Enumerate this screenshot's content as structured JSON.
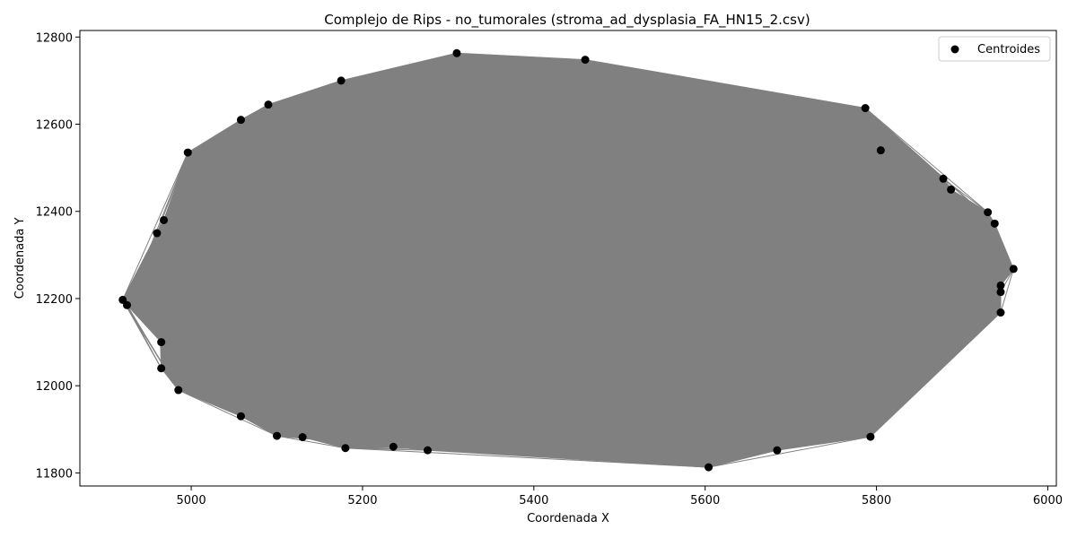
{
  "chart_data": {
    "type": "scatter",
    "title": "Complejo de Rips - no_tumorales (stroma_ad_dysplasia_FA_HN15_2.csv)",
    "xlabel": "Coordenada X",
    "ylabel": "Coordenada Y",
    "xlim": [
      4870,
      6010
    ],
    "ylim": [
      11770,
      12815
    ],
    "xticks": [
      5000,
      5200,
      5400,
      5600,
      5800,
      6000
    ],
    "yticks": [
      11800,
      12000,
      12200,
      12400,
      12600,
      12800
    ],
    "grid": false,
    "legend": {
      "position": "top-right",
      "entries": [
        "Centroides"
      ]
    },
    "colors": {
      "points": "#000000",
      "edges": "#808080"
    },
    "series": [
      {
        "name": "Centroides",
        "points": [
          [
            4920,
            12197
          ],
          [
            4925,
            12185
          ],
          [
            4960,
            12350
          ],
          [
            4968,
            12380
          ],
          [
            4965,
            12100
          ],
          [
            4965,
            12040
          ],
          [
            4985,
            11990
          ],
          [
            4996,
            12535
          ],
          [
            5058,
            12610
          ],
          [
            5090,
            12645
          ],
          [
            5058,
            11930
          ],
          [
            5100,
            11885
          ],
          [
            5130,
            11882
          ],
          [
            5175,
            12700
          ],
          [
            5180,
            11857
          ],
          [
            5236,
            11860
          ],
          [
            5276,
            11852
          ],
          [
            5310,
            12763
          ],
          [
            5460,
            12748
          ],
          [
            5604,
            11813
          ],
          [
            5684,
            11852
          ],
          [
            5787,
            12637
          ],
          [
            5793,
            11883
          ],
          [
            5805,
            12540
          ],
          [
            5878,
            12475
          ],
          [
            5887,
            12450
          ],
          [
            5930,
            12398
          ],
          [
            5938,
            12372
          ],
          [
            5945,
            12230
          ],
          [
            5945,
            12215
          ],
          [
            5945,
            12168
          ],
          [
            5960,
            12268
          ]
        ]
      }
    ]
  }
}
